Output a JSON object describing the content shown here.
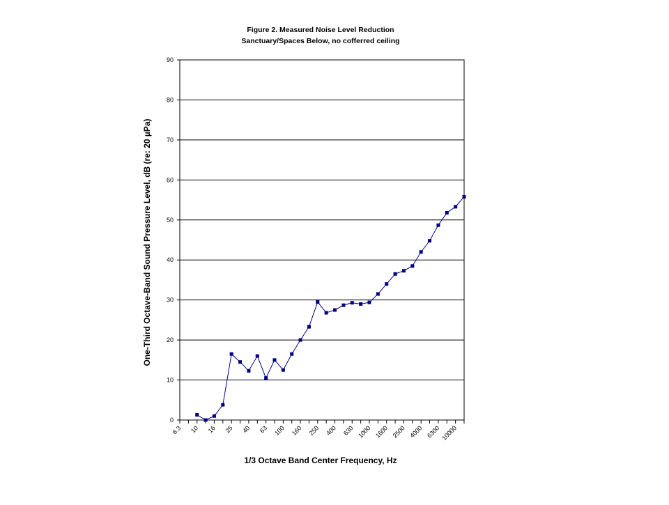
{
  "chart_data": {
    "type": "line",
    "title": "Figure 2. Measured Noise Level Reduction",
    "subtitle": "Sanctuary/Spaces Below, no cofferred ceiling",
    "x_label": "1/3 Octave Band Center Frequency, Hz",
    "y_label": "One-Third Octave-Band Sound Pressure Level, dB (re: 20 µPa)",
    "categories": [
      "6.3",
      null,
      "10",
      null,
      "16",
      null,
      "25",
      null,
      "40",
      null,
      "63",
      null,
      "100",
      null,
      "160",
      null,
      "250",
      null,
      "400",
      null,
      "630",
      null,
      "1000",
      null,
      "1600",
      null,
      "2500",
      null,
      "4000",
      null,
      "6300",
      null,
      "10000",
      null
    ],
    "series": [
      {
        "name": "Noise Level Reduction",
        "color": "#000080",
        "values": [
          null,
          null,
          1.3,
          0,
          1,
          3.8,
          16.5,
          14.5,
          12.3,
          16,
          10.5,
          15,
          12.5,
          16.5,
          20,
          23.3,
          29.5,
          26.8,
          27.5,
          28.7,
          29.3,
          29,
          29.4,
          31.5,
          34,
          36.5,
          37.3,
          38.5,
          42,
          44.8,
          48.7,
          51.8,
          53.3,
          55.8
        ]
      }
    ],
    "ylim": [
      0,
      90
    ],
    "yticks": [
      0,
      10,
      20,
      30,
      40,
      50,
      60,
      70,
      80,
      90
    ],
    "grid": true
  }
}
